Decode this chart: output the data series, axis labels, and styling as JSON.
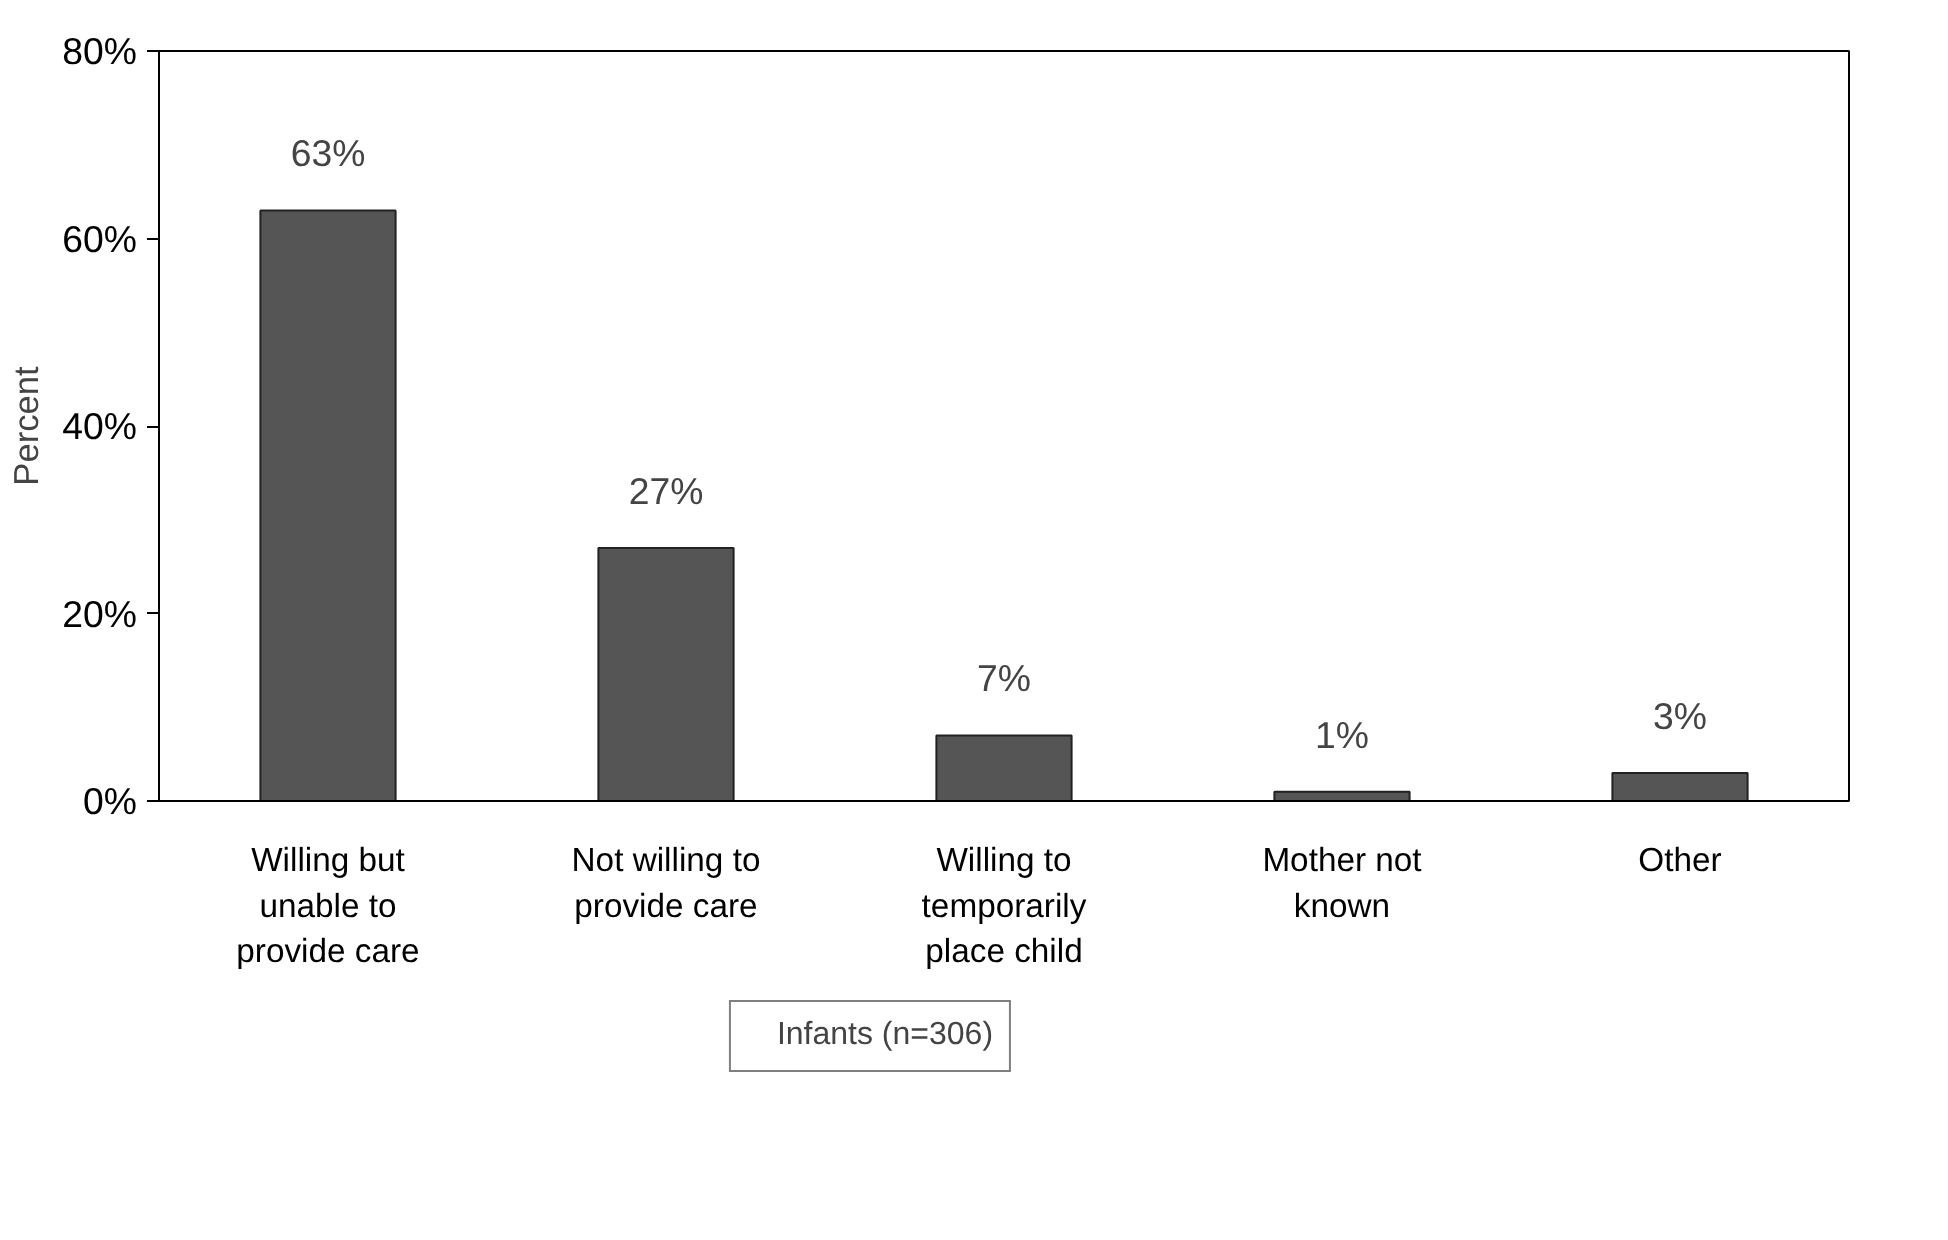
{
  "chart_data": {
    "type": "bar",
    "ylabel": "Percent",
    "categories": [
      "Willing but\nunable to\nprovide care",
      "Not willing to\nprovide care",
      "Willing to\ntemporarily\nplace child",
      "Mother not\nknown",
      "Other"
    ],
    "series": [
      {
        "name": "Infants (n=306)",
        "color": "#555555",
        "values": [
          63,
          27,
          7,
          1,
          3
        ],
        "value_labels": [
          "63%",
          "27%",
          "7%",
          "1%",
          "3%"
        ]
      }
    ],
    "ylim": [
      0,
      80
    ],
    "yticks": [
      {
        "value": 0,
        "label": "0%"
      },
      {
        "value": 20,
        "label": "20%"
      },
      {
        "value": 40,
        "label": "40%"
      },
      {
        "value": 60,
        "label": "60%"
      },
      {
        "value": 80,
        "label": "80%"
      }
    ],
    "grid": false,
    "legend": "bottom"
  }
}
